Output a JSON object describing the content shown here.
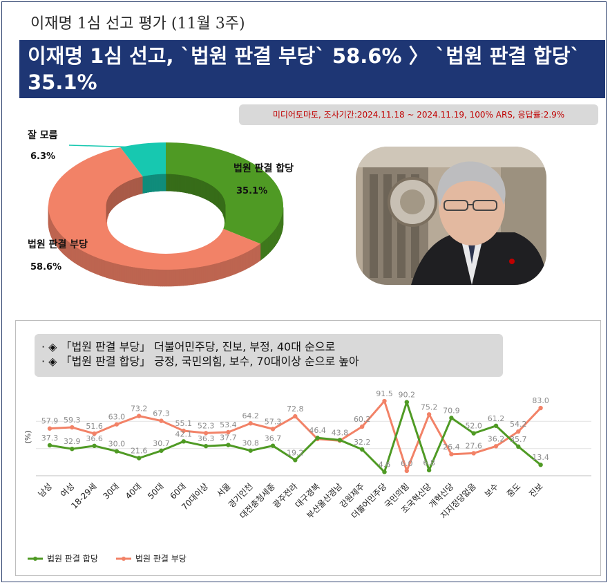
{
  "header": {
    "page_label": "이재명 1심 선고 평가 (11월 3주)",
    "headline_line1": "이재명 1심 선고, `법원 판결 부당` 58.6% 〉 `법원 판결 합당`",
    "headline_line2": "35.1%"
  },
  "source_note": "미디어토마토, 조사기간:2024.11.18 ~ 2024.11.19, 100% ARS, 응답률:2.9%",
  "notes": [
    "· ◈ 「법원 판결 부당」 더불어민주당, 진보, 부정, 40대 순으로",
    "· ◈ 「법원 판결 합당」 긍정, 국민의힘, 보수, 70대이상 순으로 높아"
  ],
  "photo": {
    "description_icon": "person-photo-icon"
  },
  "colors": {
    "agree": "#4f9a24",
    "unjust": "#f28267",
    "unknown": "#17c8b0"
  },
  "chart_data": [
    {
      "type": "pie",
      "labels": [
        "법원 판결 합당",
        "법원 판결 부당",
        "잘 모름"
      ],
      "values": [
        35.1,
        58.6,
        6.3
      ],
      "value_labels": [
        "35.1%",
        "58.6%",
        "6.3%"
      ]
    },
    {
      "type": "line",
      "ylabel": "(%)",
      "categories": [
        "남성",
        "여성",
        "18-29세",
        "30대",
        "40대",
        "50대",
        "60대",
        "70대이상",
        "서울",
        "경기인천",
        "대전충청세종",
        "광주전라",
        "대구경북",
        "부산울산경남",
        "강원제주",
        "더불어민주당",
        "국민의힘",
        "조국혁신당",
        "개혁신당",
        "지지정당없음",
        "보수",
        "중도",
        "진보"
      ],
      "series": [
        {
          "name": "법원 판결 합당",
          "values": [
            37.3,
            32.9,
            36.6,
            30.0,
            21.6,
            30.7,
            42.1,
            36.3,
            37.7,
            30.8,
            36.7,
            19.2,
            46.4,
            43.8,
            32.2,
            4.6,
            90.2,
            6.8,
            70.9,
            52.0,
            61.2,
            35.7,
            13.4
          ],
          "labels": [
            "37.3",
            "32.9",
            "36.6",
            "30.0",
            "21.6",
            "30.7",
            "42.1",
            "36.3",
            "37.7",
            "30.8",
            "36.7",
            "19.2",
            "46.4",
            "43.8",
            "32.2",
            "4.6",
            "90.2",
            "6.8",
            "70.9",
            "52.0",
            "61.2",
            "35.7",
            "13.4"
          ]
        },
        {
          "name": "법원 판결 부당",
          "values": [
            57.9,
            59.3,
            51.6,
            63.0,
            73.2,
            67.3,
            55.1,
            52.3,
            53.4,
            64.2,
            57.3,
            72.8,
            45.0,
            43.0,
            60.2,
            91.5,
            6.0,
            75.2,
            26.4,
            27.6,
            36.2,
            54.2,
            83.0
          ],
          "labels": [
            "57.9",
            "59.3",
            "51.6",
            "63.0",
            "73.2",
            "67.3",
            "55.1",
            "52.3",
            "53.4",
            "64.2",
            "57.3",
            "72.8",
            "",
            "",
            "60.2",
            "91.5",
            "6.0",
            "75.2",
            "26.4",
            "27.6",
            "36.2",
            "54.2",
            "83.0"
          ]
        }
      ],
      "ylim": [
        0,
        100
      ],
      "grid": true,
      "legend": "bottom-left"
    }
  ]
}
